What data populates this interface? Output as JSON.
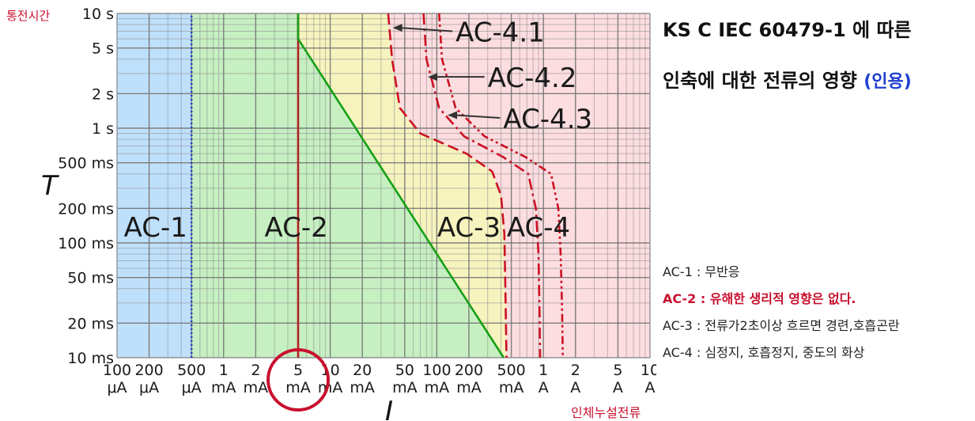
{
  "chart_data": {
    "type": "line",
    "y_top_label": "통전시간",
    "x_bottom_label": "인체누설전류",
    "ylabel": "T",
    "xlabel": "I",
    "x_scale": "log",
    "y_scale": "log",
    "xlim_mA": [
      0.1,
      10000
    ],
    "ylim_ms": [
      10,
      10000
    ],
    "x_ticks": [
      {
        "value_mA": 0.1,
        "num": "100",
        "unit": "μA"
      },
      {
        "value_mA": 0.2,
        "num": "200",
        "unit": "μA"
      },
      {
        "value_mA": 0.5,
        "num": "500",
        "unit": "μA"
      },
      {
        "value_mA": 1,
        "num": "1",
        "unit": "mA"
      },
      {
        "value_mA": 2,
        "num": "2",
        "unit": "mA"
      },
      {
        "value_mA": 5,
        "num": "5",
        "unit": "mA"
      },
      {
        "value_mA": 10,
        "num": "10",
        "unit": "mA"
      },
      {
        "value_mA": 20,
        "num": "20",
        "unit": "mA"
      },
      {
        "value_mA": 50,
        "num": "50",
        "unit": "mA"
      },
      {
        "value_mA": 100,
        "num": "100",
        "unit": "mA"
      },
      {
        "value_mA": 200,
        "num": "200",
        "unit": "mA"
      },
      {
        "value_mA": 500,
        "num": "500",
        "unit": "mA"
      },
      {
        "value_mA": 1000,
        "num": "1",
        "unit": "A"
      },
      {
        "value_mA": 2000,
        "num": "2",
        "unit": "A"
      },
      {
        "value_mA": 5000,
        "num": "5",
        "unit": "A"
      },
      {
        "value_mA": 10000,
        "num": "10",
        "unit": "A"
      }
    ],
    "y_ticks": [
      {
        "value_ms": 10000,
        "label": "10 s"
      },
      {
        "value_ms": 5000,
        "label": "5 s"
      },
      {
        "value_ms": 2000,
        "label": "2 s"
      },
      {
        "value_ms": 1000,
        "label": "1 s"
      },
      {
        "value_ms": 500,
        "label": "500 ms"
      },
      {
        "value_ms": 200,
        "label": "200 ms"
      },
      {
        "value_ms": 100,
        "label": "100 ms"
      },
      {
        "value_ms": 50,
        "label": "50 ms"
      },
      {
        "value_ms": 20,
        "label": "20 ms"
      },
      {
        "value_ms": 10,
        "label": "10 ms"
      }
    ],
    "zones": [
      {
        "label": "AC-1",
        "color": "#bfe0fb"
      },
      {
        "label": "AC-2",
        "color": "#c6efc2"
      },
      {
        "label": "AC-3",
        "color": "#f6f3be"
      },
      {
        "label": "AC-4",
        "color": "#fcdde0"
      }
    ],
    "zone_label_positions": [
      {
        "label": "AC-1",
        "x_mA": 0.23,
        "y_ms": 140
      },
      {
        "label": "AC-2",
        "x_mA": 4.8,
        "y_ms": 140
      },
      {
        "label": "AC-3",
        "x_mA": 200,
        "y_ms": 140
      },
      {
        "label": "AC-4",
        "x_mA": 900,
        "y_ms": 140
      }
    ],
    "series": [
      {
        "key": "a",
        "style": "dotted",
        "color": "#1f3fd0",
        "points": [
          [
            0.5,
            10
          ],
          [
            0.5,
            10000
          ]
        ]
      },
      {
        "key": "b",
        "style": "solid",
        "color": "#b22222",
        "points": [
          [
            5,
            10
          ],
          [
            5,
            10000
          ]
        ]
      },
      {
        "key": "c",
        "style": "solid",
        "color": "#16a016",
        "points": [
          [
            5,
            10000
          ],
          [
            5,
            6000
          ],
          [
            424,
            10
          ]
        ]
      },
      {
        "key": "c1",
        "name": "AC-4.1",
        "style": "dash",
        "color": "#cc1122",
        "points": [
          [
            35,
            10000
          ],
          [
            38,
            4000
          ],
          [
            45,
            1500
          ],
          [
            70,
            900
          ],
          [
            190,
            600
          ],
          [
            330,
            420
          ],
          [
            400,
            260
          ],
          [
            430,
            120
          ],
          [
            440,
            40
          ],
          [
            450,
            10
          ]
        ]
      },
      {
        "key": "c2",
        "name": "AC-4.2",
        "style": "dashdot",
        "color": "#cc1122",
        "points": [
          [
            75,
            10000
          ],
          [
            80,
            4000
          ],
          [
            105,
            1500
          ],
          [
            180,
            850
          ],
          [
            420,
            560
          ],
          [
            720,
            400
          ],
          [
            850,
            200
          ],
          [
            900,
            80
          ],
          [
            920,
            25
          ],
          [
            930,
            10
          ]
        ]
      },
      {
        "key": "c3",
        "name": "AC-4.3",
        "style": "dashdotdot",
        "color": "#cc1122",
        "points": [
          [
            105,
            10000
          ],
          [
            112,
            4000
          ],
          [
            150,
            1500
          ],
          [
            280,
            850
          ],
          [
            680,
            560
          ],
          [
            1180,
            400
          ],
          [
            1380,
            200
          ],
          [
            1450,
            80
          ],
          [
            1500,
            25
          ],
          [
            1520,
            10
          ]
        ]
      }
    ],
    "annotations": [
      {
        "label": "AC-4.1",
        "arrow_to_mA": 36,
        "arrow_to_ms": 7500,
        "text_mA": 150,
        "text_ms": 7000
      },
      {
        "label": "AC-4.2",
        "arrow_to_mA": 77,
        "arrow_to_ms": 2800,
        "text_mA": 300,
        "text_ms": 2800
      },
      {
        "label": "AC-4.3",
        "arrow_to_mA": 118,
        "arrow_to_ms": 1300,
        "text_mA": 420,
        "text_ms": 1230
      }
    ]
  },
  "title": {
    "line1": "KS C IEC 60479-1 에 따른",
    "line2": "인축에 대한 전류의 영향",
    "note": "(인용)"
  },
  "legend": [
    {
      "text": "AC-1 : 무반응",
      "highlight": false
    },
    {
      "text": "AC-2 : 유해한 생리적 영향은 없다.",
      "highlight": true
    },
    {
      "text": "AC-3 : 전류가2초이상 흐르면 경련,호흡곤란",
      "highlight": false
    },
    {
      "text": "AC-4 : 심정지, 호흡정지, 중도의 화상",
      "highlight": false
    }
  ]
}
